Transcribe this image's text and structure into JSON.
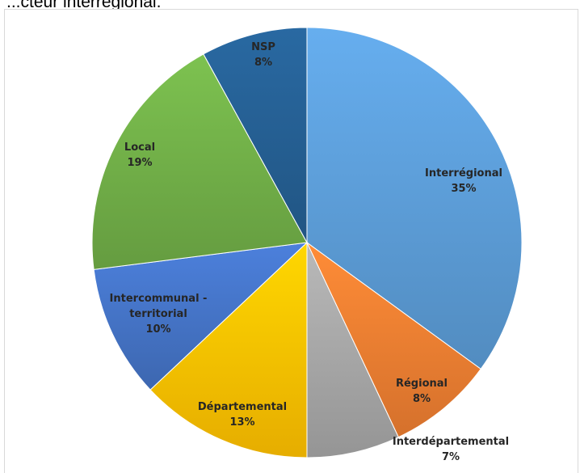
{
  "heading": "...cteur interrégional.",
  "chart_data": {
    "type": "pie",
    "title": "",
    "slices": [
      {
        "label_lines": [
          "Interrégional"
        ],
        "value": 35,
        "value_label": "35%",
        "color": "#5b9bd5"
      },
      {
        "label_lines": [
          "Régional"
        ],
        "value": 8,
        "value_label": "8%",
        "color": "#ed7d31"
      },
      {
        "label_lines": [
          "Interdépartemental"
        ],
        "value": 7,
        "value_label": "7%",
        "color": "#a5a5a5"
      },
      {
        "label_lines": [
          "Départemental"
        ],
        "value": 13,
        "value_label": "13%",
        "color": "#ffc000"
      },
      {
        "label_lines": [
          "Intercommunal -",
          "territorial"
        ],
        "value": 10,
        "value_label": "10%",
        "color": "#4472c4"
      },
      {
        "label_lines": [
          "Local"
        ],
        "value": 19,
        "value_label": "19%",
        "color": "#70ad47"
      },
      {
        "label_lines": [
          "NSP"
        ],
        "value": 8,
        "value_label": "8%",
        "color": "#255e91"
      }
    ],
    "start_angle_deg": 0,
    "direction": "clockwise",
    "data_labels": "category-and-percent",
    "legend": "none"
  }
}
